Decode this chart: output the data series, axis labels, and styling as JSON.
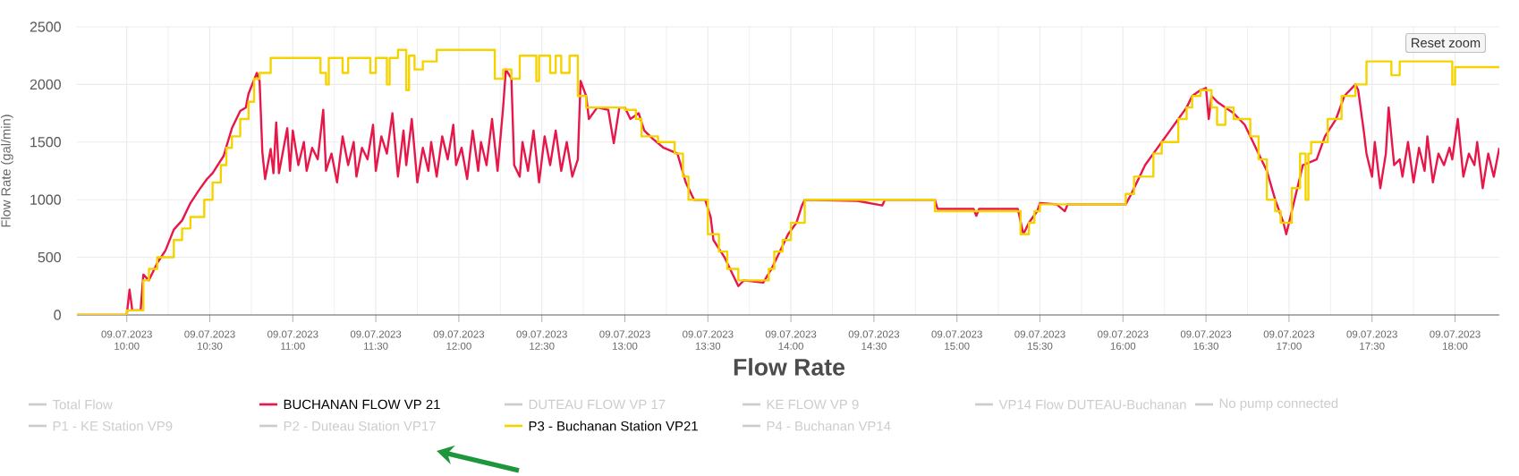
{
  "chart_data": {
    "type": "line",
    "title": "Flow Rate",
    "ylabel": "Flow Rate (gal/min)",
    "xlim": [
      "2023-07-09T09:42",
      "2023-07-09T18:16"
    ],
    "ylim": [
      0,
      2500
    ],
    "xticks": [
      {
        "value": "2023-07-09T10:00",
        "label": "09.07.2023 10:00"
      },
      {
        "value": "2023-07-09T10:30",
        "label": "09.07.2023 10:30"
      },
      {
        "value": "2023-07-09T11:00",
        "label": "09.07.2023 11:00"
      },
      {
        "value": "2023-07-09T11:30",
        "label": "09.07.2023 11:30"
      },
      {
        "value": "2023-07-09T12:00",
        "label": "09.07.2023 12:00"
      },
      {
        "value": "2023-07-09T12:30",
        "label": "09.07.2023 12:30"
      },
      {
        "value": "2023-07-09T13:00",
        "label": "09.07.2023 13:00"
      },
      {
        "value": "2023-07-09T13:30",
        "label": "09.07.2023 13:30"
      },
      {
        "value": "2023-07-09T14:00",
        "label": "09.07.2023 14:00"
      },
      {
        "value": "2023-07-09T14:30",
        "label": "09.07.2023 14:30"
      },
      {
        "value": "2023-07-09T15:00",
        "label": "09.07.2023 15:00"
      },
      {
        "value": "2023-07-09T15:30",
        "label": "09.07.2023 15:30"
      },
      {
        "value": "2023-07-09T16:00",
        "label": "09.07.2023 16:00"
      },
      {
        "value": "2023-07-09T16:30",
        "label": "09.07.2023 16:30"
      },
      {
        "value": "2023-07-09T17:00",
        "label": "09.07.2023 17:00"
      },
      {
        "value": "2023-07-09T17:30",
        "label": "09.07.2023 17:30"
      },
      {
        "value": "2023-07-09T18:00",
        "label": "09.07.2023 18:00"
      }
    ],
    "yticks": [
      0,
      500,
      1000,
      1500,
      2000,
      2500
    ],
    "grid": true,
    "legend": "bottom",
    "annotations": [
      "Reset zoom"
    ],
    "series": [
      {
        "name": "Total Flow",
        "color": "#cccccc"
      },
      {
        "name": "BUCHANAN FLOW VP 21",
        "color": "#e8174a",
        "x": [
          "2023-07-09T09:42",
          "2023-07-09T10:00",
          "2023-07-09T10:01",
          "2023-07-09T10:02",
          "2023-07-09T10:05",
          "2023-07-09T10:06",
          "2023-07-09T10:08",
          "2023-07-09T10:11",
          "2023-07-09T10:14",
          "2023-07-09T10:17",
          "2023-07-09T10:20",
          "2023-07-09T10:23",
          "2023-07-09T10:26",
          "2023-07-09T10:29",
          "2023-07-09T10:31",
          "2023-07-09T10:35",
          "2023-07-09T10:38",
          "2023-07-09T10:41",
          "2023-07-09T10:43",
          "2023-07-09T10:44",
          "2023-07-09T10:47",
          "2023-07-09T10:48",
          "2023-07-09T10:49",
          "2023-07-09T10:50",
          "2023-07-09T10:52",
          "2023-07-09T10:53",
          "2023-07-09T10:54",
          "2023-07-09T10:55",
          "2023-07-09T10:58",
          "2023-07-09T10:59",
          "2023-07-09T11:00",
          "2023-07-09T11:02",
          "2023-07-09T11:04",
          "2023-07-09T11:05",
          "2023-07-09T11:07",
          "2023-07-09T11:09",
          "2023-07-09T11:11",
          "2023-07-09T11:12",
          "2023-07-09T11:14",
          "2023-07-09T11:16",
          "2023-07-09T11:18",
          "2023-07-09T11:20",
          "2023-07-09T11:22",
          "2023-07-09T11:23",
          "2023-07-09T11:25",
          "2023-07-09T11:27",
          "2023-07-09T11:29",
          "2023-07-09T11:30",
          "2023-07-09T11:32",
          "2023-07-09T11:34",
          "2023-07-09T11:36",
          "2023-07-09T11:38",
          "2023-07-09T11:40",
          "2023-07-09T11:41",
          "2023-07-09T11:43",
          "2023-07-09T11:45",
          "2023-07-09T11:47",
          "2023-07-09T11:49",
          "2023-07-09T11:50",
          "2023-07-09T11:52",
          "2023-07-09T11:54",
          "2023-07-09T11:56",
          "2023-07-09T11:58",
          "2023-07-09T11:59",
          "2023-07-09T12:01",
          "2023-07-09T12:03",
          "2023-07-09T12:05",
          "2023-07-09T12:07",
          "2023-07-09T12:08",
          "2023-07-09T12:10",
          "2023-07-09T12:12",
          "2023-07-09T12:14",
          "2023-07-09T12:16",
          "2023-07-09T12:17",
          "2023-07-09T12:19",
          "2023-07-09T12:20",
          "2023-07-09T12:22",
          "2023-07-09T12:23",
          "2023-07-09T12:25",
          "2023-07-09T12:27",
          "2023-07-09T12:29",
          "2023-07-09T12:31",
          "2023-07-09T12:33",
          "2023-07-09T12:35",
          "2023-07-09T12:37",
          "2023-07-09T12:39",
          "2023-07-09T12:41",
          "2023-07-09T12:43",
          "2023-07-09T12:44",
          "2023-07-09T12:46",
          "2023-07-09T12:47",
          "2023-07-09T12:50",
          "2023-07-09T12:54",
          "2023-07-09T12:56",
          "2023-07-09T12:58",
          "2023-07-09T13:00",
          "2023-07-09T13:02",
          "2023-07-09T13:05",
          "2023-07-09T13:07",
          "2023-07-09T13:10",
          "2023-07-09T13:14",
          "2023-07-09T13:19",
          "2023-07-09T13:22",
          "2023-07-09T13:25",
          "2023-07-09T13:29",
          "2023-07-09T13:31",
          "2023-07-09T13:32",
          "2023-07-09T13:36",
          "2023-07-09T13:38",
          "2023-07-09T13:41",
          "2023-07-09T13:43",
          "2023-07-09T13:50",
          "2023-07-09T13:53",
          "2023-07-09T13:55",
          "2023-07-09T13:57",
          "2023-07-09T13:59",
          "2023-07-09T14:02",
          "2023-07-09T14:04",
          "2023-07-09T14:05",
          "2023-07-09T14:24",
          "2023-07-09T14:33",
          "2023-07-09T14:34",
          "2023-07-09T14:52",
          "2023-07-09T14:53",
          "2023-07-09T15:06",
          "2023-07-09T15:07",
          "2023-07-09T15:08",
          "2023-07-09T15:22",
          "2023-07-09T15:24",
          "2023-07-09T15:26",
          "2023-07-09T15:29",
          "2023-07-09T15:30",
          "2023-07-09T15:36",
          "2023-07-09T15:39",
          "2023-07-09T15:40",
          "2023-07-09T16:01",
          "2023-07-09T16:03",
          "2023-07-09T16:05",
          "2023-07-09T16:08",
          "2023-07-09T16:11",
          "2023-07-09T16:14",
          "2023-07-09T16:17",
          "2023-07-09T16:20",
          "2023-07-09T16:23",
          "2023-07-09T16:25",
          "2023-07-09T16:28",
          "2023-07-09T16:30",
          "2023-07-09T16:31",
          "2023-07-09T16:32",
          "2023-07-09T16:34",
          "2023-07-09T16:37",
          "2023-07-09T16:40",
          "2023-07-09T16:44",
          "2023-07-09T16:47",
          "2023-07-09T16:49",
          "2023-07-09T16:52",
          "2023-07-09T16:55",
          "2023-07-09T16:58",
          "2023-07-09T16:59",
          "2023-07-09T17:02",
          "2023-07-09T17:04",
          "2023-07-09T17:05",
          "2023-07-09T17:10",
          "2023-07-09T17:13",
          "2023-07-09T17:17",
          "2023-07-09T17:20",
          "2023-07-09T17:24",
          "2023-07-09T17:25",
          "2023-07-09T17:27",
          "2023-07-09T17:28",
          "2023-07-09T17:30",
          "2023-07-09T17:31",
          "2023-07-09T17:33",
          "2023-07-09T17:35",
          "2023-07-09T17:36",
          "2023-07-09T17:38",
          "2023-07-09T17:40",
          "2023-07-09T17:41",
          "2023-07-09T17:43",
          "2023-07-09T17:45",
          "2023-07-09T17:47",
          "2023-07-09T17:49",
          "2023-07-09T17:50",
          "2023-07-09T17:52",
          "2023-07-09T17:54",
          "2023-07-09T17:56",
          "2023-07-09T17:58",
          "2023-07-09T17:59",
          "2023-07-09T18:01",
          "2023-07-09T18:03",
          "2023-07-09T18:05",
          "2023-07-09T18:07",
          "2023-07-09T18:08",
          "2023-07-09T18:10",
          "2023-07-09T18:12",
          "2023-07-09T18:14",
          "2023-07-09T18:16"
        ],
        "values": [
          0,
          0,
          220,
          40,
          40,
          350,
          300,
          450,
          560,
          740,
          820,
          970,
          1080,
          1180,
          1230,
          1380,
          1620,
          1770,
          1800,
          1920,
          2100,
          2030,
          1410,
          1180,
          1440,
          1230,
          1670,
          1230,
          1620,
          1250,
          1600,
          1300,
          1500,
          1250,
          1450,
          1350,
          1780,
          1250,
          1400,
          1150,
          1550,
          1300,
          1500,
          1200,
          1450,
          1350,
          1650,
          1250,
          1550,
          1400,
          1750,
          1200,
          1600,
          1300,
          1700,
          1150,
          1450,
          1250,
          1500,
          1200,
          1550,
          1350,
          1650,
          1300,
          1450,
          1180,
          1600,
          1250,
          1500,
          1300,
          1700,
          1250,
          1800,
          2130,
          2050,
          1300,
          1200,
          1500,
          1250,
          1600,
          1150,
          1550,
          1300,
          1600,
          1250,
          1500,
          1200,
          1350,
          2030,
          1900,
          1700,
          1800,
          1780,
          1490,
          1800,
          1800,
          1700,
          1750,
          1600,
          1530,
          1450,
          1400,
          1150,
          1000,
          1000,
          850,
          650,
          500,
          400,
          250,
          300,
          280,
          400,
          500,
          600,
          700,
          800,
          950,
          1000,
          990,
          950,
          1000,
          1000,
          920,
          920,
          860,
          920,
          920,
          700,
          800,
          900,
          970,
          960,
          900,
          960,
          960,
          1050,
          1150,
          1300,
          1400,
          1500,
          1600,
          1700,
          1800,
          1900,
          1950,
          1970,
          1700,
          1900,
          1850,
          1800,
          1750,
          1650,
          1500,
          1400,
          1250,
          1000,
          800,
          700,
          1000,
          1200,
          1300,
          1350,
          1550,
          1700,
          1900,
          2000,
          1950,
          1600,
          1400,
          1200,
          1500,
          1100,
          1400,
          1800,
          1300,
          1350,
          1200,
          1500,
          1150,
          1450,
          1250,
          1550,
          1150,
          1400,
          1300,
          1450,
          1350,
          1700,
          1200,
          1400,
          1300,
          1500,
          1100,
          1400,
          1200,
          1450
        ]
      },
      {
        "name": "DUTEAU FLOW VP 17",
        "color": "#cccccc"
      },
      {
        "name": "KE FLOW VP 9",
        "color": "#cccccc"
      },
      {
        "name": "VP14 Flow DUTEAU-Buchanan",
        "color": "#cccccc"
      },
      {
        "name": "No pump connected",
        "color": "#cccccc"
      },
      {
        "name": "P1 - KE Station VP9",
        "color": "#cccccc"
      },
      {
        "name": "P2 - Duteau Station VP17",
        "color": "#cccccc"
      },
      {
        "name": "P3 - Buchanan Station VP21",
        "color": "#f5d300",
        "type": "step",
        "x": [
          "2023-07-09T09:42",
          "2023-07-09T10:00",
          "2023-07-09T10:06",
          "2023-07-09T10:08",
          "2023-07-09T10:11",
          "2023-07-09T10:17",
          "2023-07-09T10:20",
          "2023-07-09T10:23",
          "2023-07-09T10:28",
          "2023-07-09T10:31",
          "2023-07-09T10:34",
          "2023-07-09T10:36",
          "2023-07-09T10:38",
          "2023-07-09T10:41",
          "2023-07-09T10:44",
          "2023-07-09T10:46",
          "2023-07-09T10:48",
          "2023-07-09T10:52",
          "2023-07-09T11:10",
          "2023-07-09T11:12",
          "2023-07-09T11:13",
          "2023-07-09T11:18",
          "2023-07-09T11:20",
          "2023-07-09T11:28",
          "2023-07-09T11:30",
          "2023-07-09T11:34",
          "2023-07-09T11:35",
          "2023-07-09T11:38",
          "2023-07-09T11:41",
          "2023-07-09T11:42",
          "2023-07-09T11:44",
          "2023-07-09T11:47",
          "2023-07-09T11:52",
          "2023-07-09T12:13",
          "2023-07-09T12:16",
          "2023-07-09T12:19",
          "2023-07-09T12:22",
          "2023-07-09T12:28",
          "2023-07-09T12:29",
          "2023-07-09T12:33",
          "2023-07-09T12:35",
          "2023-07-09T12:37",
          "2023-07-09T12:40",
          "2023-07-09T12:43",
          "2023-07-09T12:46",
          "2023-07-09T13:00",
          "2023-07-09T13:04",
          "2023-07-09T13:06",
          "2023-07-09T13:12",
          "2023-07-09T13:18",
          "2023-07-09T13:21",
          "2023-07-09T13:23",
          "2023-07-09T13:30",
          "2023-07-09T13:34",
          "2023-07-09T13:37",
          "2023-07-09T13:41",
          "2023-07-09T13:52",
          "2023-07-09T13:54",
          "2023-07-09T13:57",
          "2023-07-09T14:00",
          "2023-07-09T14:05",
          "2023-07-09T14:52",
          "2023-07-09T15:23",
          "2023-07-09T15:26",
          "2023-07-09T15:28",
          "2023-07-09T15:30",
          "2023-07-09T16:01",
          "2023-07-09T16:04",
          "2023-07-09T16:11",
          "2023-07-09T16:14",
          "2023-07-09T16:20",
          "2023-07-09T16:23",
          "2023-07-09T16:25",
          "2023-07-09T16:28",
          "2023-07-09T16:32",
          "2023-07-09T16:34",
          "2023-07-09T16:37",
          "2023-07-09T16:40",
          "2023-07-09T16:46",
          "2023-07-09T16:49",
          "2023-07-09T16:52",
          "2023-07-09T16:55",
          "2023-07-09T16:57",
          "2023-07-09T17:01",
          "2023-07-09T17:04",
          "2023-07-09T17:06",
          "2023-07-09T17:07",
          "2023-07-09T17:08",
          "2023-07-09T17:14",
          "2023-07-09T17:19",
          "2023-07-09T17:24",
          "2023-07-09T17:28",
          "2023-07-09T17:37",
          "2023-07-09T17:40",
          "2023-07-09T17:52",
          "2023-07-09T17:59",
          "2023-07-09T18:00",
          "2023-07-09T18:16"
        ],
        "values": [
          0,
          40,
          300,
          400,
          500,
          650,
          750,
          850,
          1000,
          1150,
          1300,
          1450,
          1550,
          1700,
          1850,
          2050,
          2100,
          2230,
          2100,
          2000,
          2230,
          2100,
          2230,
          2100,
          2230,
          2000,
          2230,
          2300,
          1950,
          2250,
          2130,
          2200,
          2300,
          2050,
          2130,
          2050,
          2250,
          2030,
          2250,
          2100,
          2250,
          2100,
          2250,
          1900,
          1800,
          1780,
          1700,
          1550,
          1500,
          1400,
          1200,
          1000,
          700,
          550,
          400,
          300,
          400,
          550,
          650,
          800,
          1000,
          900,
          700,
          800,
          900,
          960,
          1050,
          1200,
          1400,
          1500,
          1700,
          1800,
          1900,
          1950,
          1800,
          1650,
          1800,
          1700,
          1550,
          1350,
          1000,
          900,
          800,
          1100,
          1400,
          1000,
          1400,
          1500,
          1700,
          1900,
          2000,
          2200,
          2080,
          2200,
          2200,
          2000,
          2150,
          2150
        ]
      },
      {
        "name": "P4 - Buchanan VP14",
        "color": "#cccccc"
      }
    ]
  }
}
